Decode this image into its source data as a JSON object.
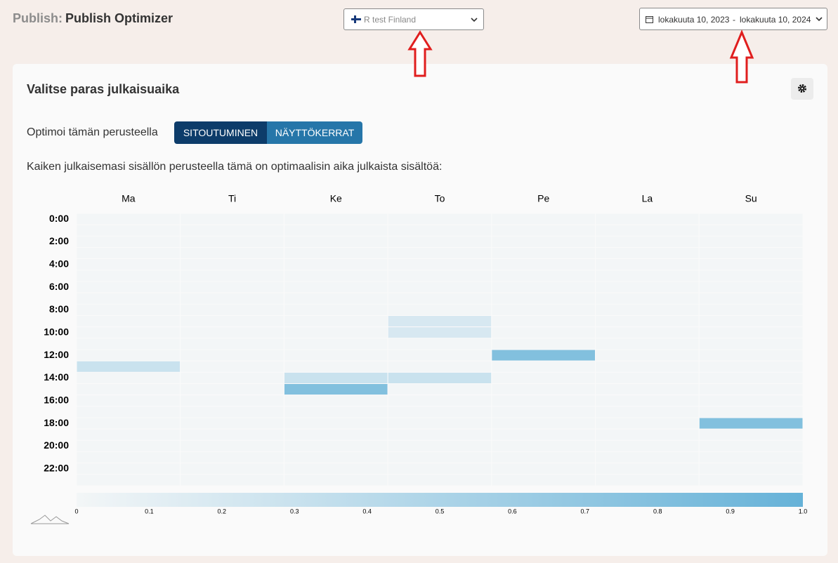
{
  "header": {
    "section": "Publish:",
    "title": "Publish Optimizer",
    "account": "R test Finland",
    "date_start": "lokakuuta 10, 2023",
    "date_separator": "-",
    "date_end": "lokakuuta 10, 2024"
  },
  "panel": {
    "title": "Valitse paras julkaisuaika",
    "optimize_label": "Optimoi tämän perusteella",
    "buttons": [
      "SITOUTUMINEN",
      "NÄYTTÖKERRAT"
    ],
    "description": "Kaiken julkaisemasi sisällön perusteella tämä on optimaalisin aika julkaista sisältöä:"
  },
  "chart_data": {
    "type": "heatmap",
    "x_categories": [
      "Ma",
      "Ti",
      "Ke",
      "To",
      "Pe",
      "La",
      "Su"
    ],
    "y_categories": [
      "0:00",
      null,
      "2:00",
      null,
      "4:00",
      null,
      "6:00",
      null,
      "8:00",
      null,
      "10:00",
      null,
      "12:00",
      null,
      "14:00",
      null,
      "16:00",
      null,
      "18:00",
      null,
      "20:00",
      null,
      "22:00",
      null
    ],
    "values": [
      [
        0,
        0,
        0,
        0,
        0,
        0,
        0
      ],
      [
        0,
        0,
        0,
        0,
        0,
        0,
        0
      ],
      [
        0,
        0,
        0,
        0,
        0,
        0,
        0
      ],
      [
        0,
        0,
        0,
        0,
        0,
        0,
        0
      ],
      [
        0,
        0,
        0,
        0,
        0,
        0,
        0
      ],
      [
        0,
        0,
        0,
        0,
        0,
        0,
        0
      ],
      [
        0,
        0,
        0,
        0,
        0,
        0,
        0
      ],
      [
        0,
        0,
        0,
        0,
        0,
        0,
        0
      ],
      [
        0,
        0,
        0,
        0,
        0,
        0,
        0
      ],
      [
        0,
        0,
        0,
        0.2,
        0,
        0,
        0
      ],
      [
        0,
        0,
        0,
        0.2,
        0,
        0,
        0
      ],
      [
        0,
        0,
        0,
        0,
        0,
        0,
        0
      ],
      [
        0,
        0,
        0,
        0,
        0.8,
        0,
        0
      ],
      [
        0.3,
        0,
        0,
        0,
        0,
        0,
        0
      ],
      [
        0,
        0,
        0.3,
        0.3,
        0,
        0,
        0
      ],
      [
        0,
        0,
        0.8,
        0,
        0,
        0,
        0
      ],
      [
        0,
        0,
        0,
        0,
        0,
        0,
        0
      ],
      [
        0,
        0,
        0,
        0,
        0,
        0,
        0
      ],
      [
        0,
        0,
        0,
        0,
        0,
        0,
        0.8
      ],
      [
        0,
        0,
        0,
        0,
        0,
        0,
        0
      ],
      [
        0,
        0,
        0,
        0,
        0,
        0,
        0
      ],
      [
        0,
        0,
        0,
        0,
        0,
        0,
        0
      ],
      [
        0,
        0,
        0,
        0,
        0,
        0,
        0
      ],
      [
        0,
        0,
        0,
        0,
        0,
        0,
        0
      ]
    ],
    "zlim": [
      0,
      1
    ],
    "colors": [
      "#f3f6f7",
      "#66b2d8"
    ],
    "zticks": [
      0,
      0.1,
      0.2,
      0.3,
      0.4,
      0.5,
      0.6,
      0.7,
      0.8,
      0.9,
      {
        "value": 1,
        "label": "1.0"
      }
    ]
  }
}
